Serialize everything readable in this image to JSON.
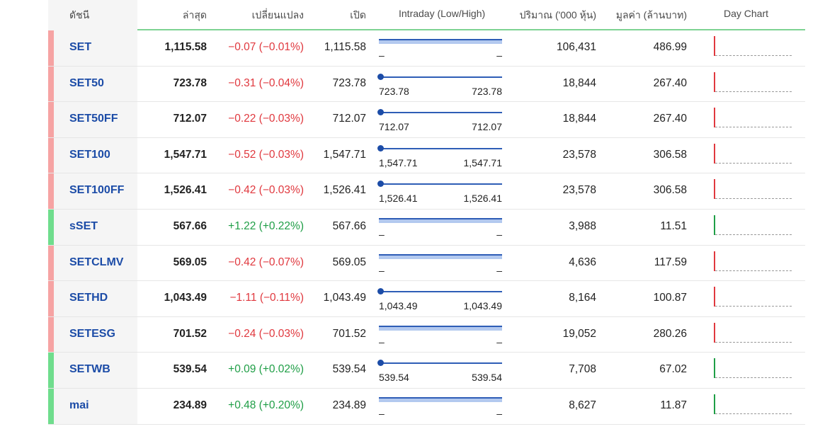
{
  "header": {
    "symbol": "ดัชนี",
    "last": "ล่าสุด",
    "change": "เปลี่ยนแปลง",
    "open": "เปิด",
    "intraday": "Intraday (Low/High)",
    "volume": "ปริมาณ ('000 หุ้น)",
    "value": "มูลค่า (ล้านบาท)",
    "day_chart": "Day Chart"
  },
  "colors": {
    "down": "#e0383e",
    "up": "#1f9e46",
    "down_bar": "#f6a3a3",
    "up_bar": "#6fdd8d"
  },
  "rows": [
    {
      "symbol": "SET",
      "last": "1,115.58",
      "change": "-0.07 (-0.01%)",
      "dir": "down",
      "open": "1,115.58",
      "low": "-",
      "high": "-",
      "intraday_style": "band",
      "volume": "106,431",
      "value": "486.99"
    },
    {
      "symbol": "SET50",
      "last": "723.78",
      "change": "-0.31 (-0.04%)",
      "dir": "down",
      "open": "723.78",
      "low": "723.78",
      "high": "723.78",
      "intraday_style": "dot",
      "volume": "18,844",
      "value": "267.40"
    },
    {
      "symbol": "SET50FF",
      "last": "712.07",
      "change": "-0.22 (-0.03%)",
      "dir": "down",
      "open": "712.07",
      "low": "712.07",
      "high": "712.07",
      "intraday_style": "dot",
      "volume": "18,844",
      "value": "267.40"
    },
    {
      "symbol": "SET100",
      "last": "1,547.71",
      "change": "-0.52 (-0.03%)",
      "dir": "down",
      "open": "1,547.71",
      "low": "1,547.71",
      "high": "1,547.71",
      "intraday_style": "dot",
      "volume": "23,578",
      "value": "306.58"
    },
    {
      "symbol": "SET100FF",
      "last": "1,526.41",
      "change": "-0.42 (-0.03%)",
      "dir": "down",
      "open": "1,526.41",
      "low": "1,526.41",
      "high": "1,526.41",
      "intraday_style": "dot",
      "volume": "23,578",
      "value": "306.58"
    },
    {
      "symbol": "sSET",
      "last": "567.66",
      "change": "+1.22 (+0.22%)",
      "dir": "up",
      "open": "567.66",
      "low": "-",
      "high": "-",
      "intraday_style": "band",
      "volume": "3,988",
      "value": "11.51"
    },
    {
      "symbol": "SETCLMV",
      "last": "569.05",
      "change": "-0.42 (-0.07%)",
      "dir": "down",
      "open": "569.05",
      "low": "-",
      "high": "-",
      "intraday_style": "band",
      "volume": "4,636",
      "value": "117.59"
    },
    {
      "symbol": "SETHD",
      "last": "1,043.49",
      "change": "-1.11 (-0.11%)",
      "dir": "down",
      "open": "1,043.49",
      "low": "1,043.49",
      "high": "1,043.49",
      "intraday_style": "dot",
      "volume": "8,164",
      "value": "100.87"
    },
    {
      "symbol": "SETESG",
      "last": "701.52",
      "change": "-0.24 (-0.03%)",
      "dir": "down",
      "open": "701.52",
      "low": "-",
      "high": "-",
      "intraday_style": "band",
      "volume": "19,052",
      "value": "280.26"
    },
    {
      "symbol": "SETWB",
      "last": "539.54",
      "change": "+0.09 (+0.02%)",
      "dir": "up",
      "open": "539.54",
      "low": "539.54",
      "high": "539.54",
      "intraday_style": "dot",
      "volume": "7,708",
      "value": "67.02"
    },
    {
      "symbol": "mai",
      "last": "234.89",
      "change": "+0.48 (+0.20%)",
      "dir": "up",
      "open": "234.89",
      "low": "-",
      "high": "-",
      "intraday_style": "band",
      "volume": "8,627",
      "value": "11.87"
    }
  ]
}
